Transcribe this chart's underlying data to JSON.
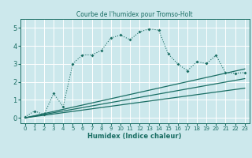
{
  "title": "Courbe de l'humidex pour Tromso-Holt",
  "xlabel": "Humidex (Indice chaleur)",
  "background_color": "#cce8ec",
  "grid_color": "#ffffff",
  "line_color": "#1a6e64",
  "xlim": [
    -0.5,
    23.5
  ],
  "ylim": [
    -0.3,
    5.5
  ],
  "xticks": [
    0,
    1,
    2,
    3,
    4,
    5,
    6,
    7,
    8,
    9,
    10,
    11,
    12,
    13,
    14,
    15,
    16,
    17,
    18,
    19,
    20,
    21,
    22,
    23
  ],
  "yticks": [
    0,
    1,
    2,
    3,
    4,
    5
  ],
  "series1_x": [
    0,
    1,
    2,
    3,
    4,
    5,
    6,
    7,
    8,
    9,
    10,
    11,
    12,
    13,
    14,
    15,
    16,
    17,
    18,
    19,
    20,
    21,
    22,
    23
  ],
  "series1_y": [
    0.05,
    0.38,
    0.18,
    1.35,
    0.62,
    3.0,
    3.5,
    3.5,
    3.75,
    4.45,
    4.6,
    4.35,
    4.78,
    4.95,
    4.88,
    3.55,
    3.0,
    2.62,
    3.12,
    3.02,
    3.48,
    2.5,
    2.48,
    2.52
  ],
  "series2_x": [
    0,
    23
  ],
  "series2_y": [
    0.0,
    2.72
  ],
  "series3_x": [
    0,
    23
  ],
  "series3_y": [
    0.0,
    2.18
  ],
  "series4_x": [
    0,
    23
  ],
  "series4_y": [
    0.0,
    1.65
  ]
}
